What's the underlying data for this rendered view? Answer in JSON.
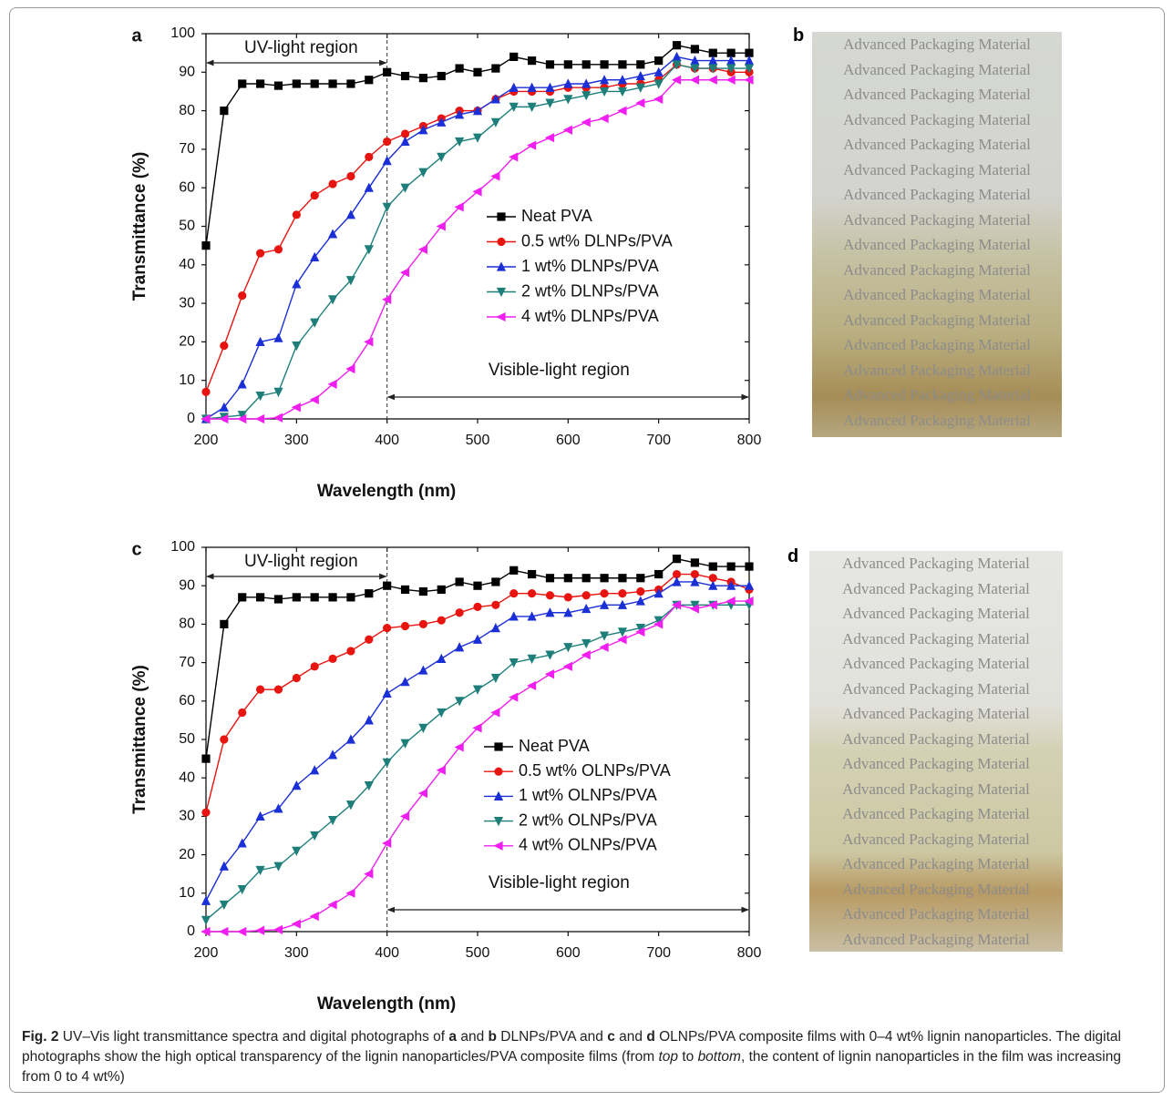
{
  "chart_data": [
    {
      "type": "line",
      "panel": "a",
      "xlabel": "Wavelength (nm)",
      "ylabel": "Transmittance (%)",
      "uv_label": "UV-light region",
      "visible_label": "Visible-light region",
      "region_divider": 400,
      "legend": "center",
      "xlim": [
        200,
        800
      ],
      "xticks": [
        200,
        300,
        400,
        500,
        600,
        700,
        800
      ],
      "ylim": [
        0,
        100
      ],
      "yticks": [
        0,
        10,
        20,
        30,
        40,
        50,
        60,
        70,
        80,
        90,
        100
      ],
      "x": [
        200,
        220,
        240,
        260,
        280,
        300,
        320,
        340,
        360,
        380,
        400,
        420,
        440,
        460,
        480,
        500,
        520,
        540,
        560,
        580,
        600,
        620,
        640,
        660,
        680,
        700,
        720,
        740,
        760,
        780,
        800
      ],
      "series": [
        {
          "name": "Neat PVA",
          "color": "#000000",
          "marker": "square",
          "values": [
            45,
            80,
            87,
            87,
            86.5,
            87,
            87,
            87,
            87,
            88,
            90,
            89,
            88.5,
            89,
            91,
            90,
            91,
            94,
            93,
            92,
            92,
            92,
            92,
            92,
            92,
            93,
            97,
            96,
            95,
            95,
            95
          ]
        },
        {
          "name": "0.5 wt% DLNPs/PVA",
          "color": "#e8140f",
          "marker": "circle",
          "values": [
            7,
            19,
            32,
            43,
            44,
            53,
            58,
            61,
            63,
            68,
            72,
            74,
            76,
            78,
            80,
            80,
            83,
            85,
            85,
            85,
            86,
            86,
            86,
            87,
            87,
            88,
            92,
            91,
            91,
            90,
            90
          ]
        },
        {
          "name": "1 wt% DLNPs/PVA",
          "color": "#1b2fd6",
          "marker": "triangle-up",
          "values": [
            0,
            3,
            9,
            20,
            21,
            35,
            42,
            48,
            53,
            60,
            67,
            72,
            75,
            77,
            79,
            80,
            83,
            86,
            86,
            86,
            87,
            87,
            88,
            88,
            89,
            90,
            94,
            93,
            93,
            93,
            93
          ]
        },
        {
          "name": "2 wt% DLNPs/PVA",
          "color": "#1e7f7a",
          "marker": "triangle-down",
          "values": [
            0,
            0.5,
            1,
            6,
            7,
            19,
            25,
            31,
            36,
            44,
            55,
            60,
            64,
            68,
            72,
            73,
            77,
            81,
            81,
            82,
            83,
            84,
            85,
            85,
            86,
            87,
            92,
            91,
            91,
            91,
            91
          ]
        },
        {
          "name": "4 wt% DLNPs/PVA",
          "color": "#f01ef0",
          "marker": "triangle-left",
          "values": [
            0,
            0,
            0,
            0,
            0.3,
            3,
            5,
            9,
            13,
            20,
            31,
            38,
            44,
            50,
            55,
            59,
            63,
            68,
            71,
            73,
            75,
            77,
            78,
            80,
            82,
            83,
            88,
            88,
            88,
            88,
            88
          ]
        }
      ]
    },
    {
      "type": "line",
      "panel": "c",
      "xlabel": "Wavelength (nm)",
      "ylabel": "Transmittance (%)",
      "uv_label": "UV-light region",
      "visible_label": "Visible-light region",
      "region_divider": 400,
      "legend": "center",
      "xlim": [
        200,
        800
      ],
      "xticks": [
        200,
        300,
        400,
        500,
        600,
        700,
        800
      ],
      "ylim": [
        0,
        100
      ],
      "yticks": [
        0,
        10,
        20,
        30,
        40,
        50,
        60,
        70,
        80,
        90,
        100
      ],
      "x": [
        200,
        220,
        240,
        260,
        280,
        300,
        320,
        340,
        360,
        380,
        400,
        420,
        440,
        460,
        480,
        500,
        520,
        540,
        560,
        580,
        600,
        620,
        640,
        660,
        680,
        700,
        720,
        740,
        760,
        780,
        800
      ],
      "series": [
        {
          "name": "Neat PVA",
          "color": "#000000",
          "marker": "square",
          "values": [
            45,
            80,
            87,
            87,
            86.5,
            87,
            87,
            87,
            87,
            88,
            90,
            89,
            88.5,
            89,
            91,
            90,
            91,
            94,
            93,
            92,
            92,
            92,
            92,
            92,
            92,
            93,
            97,
            96,
            95,
            95,
            95
          ]
        },
        {
          "name": "0.5 wt% OLNPs/PVA",
          "color": "#e8140f",
          "marker": "circle",
          "values": [
            31,
            50,
            57,
            63,
            63,
            66,
            69,
            71,
            73,
            76,
            79,
            79.5,
            80,
            81,
            83,
            84.5,
            85,
            88,
            88,
            87.5,
            87,
            87.5,
            88,
            88,
            88.5,
            89,
            93,
            93,
            92,
            91,
            89
          ]
        },
        {
          "name": "1 wt% OLNPs/PVA",
          "color": "#1b2fd6",
          "marker": "triangle-up",
          "values": [
            8,
            17,
            23,
            30,
            32,
            38,
            42,
            46,
            50,
            55,
            62,
            65,
            68,
            71,
            74,
            76,
            79,
            82,
            82,
            83,
            83,
            84,
            85,
            85,
            86,
            88,
            91,
            91,
            90,
            90,
            90
          ]
        },
        {
          "name": "2 wt% OLNPs/PVA",
          "color": "#1e7f7a",
          "marker": "triangle-down",
          "values": [
            3,
            7,
            11,
            16,
            17,
            21,
            25,
            29,
            33,
            38,
            44,
            49,
            53,
            57,
            60,
            63,
            66,
            70,
            71,
            72,
            74,
            75,
            77,
            78,
            79,
            81,
            85,
            85,
            85,
            85,
            85
          ]
        },
        {
          "name": "4 wt% OLNPs/PVA",
          "color": "#f01ef0",
          "marker": "triangle-left",
          "values": [
            0,
            0,
            0,
            0.3,
            0.5,
            2,
            4,
            7,
            10,
            15,
            23,
            30,
            36,
            42,
            48,
            53,
            57,
            61,
            64,
            67,
            69,
            72,
            74,
            76,
            78,
            80,
            85,
            84,
            85,
            86,
            86
          ]
        }
      ]
    }
  ],
  "photos": [
    {
      "label": "b",
      "rows": [
        "Advanced Packaging Material",
        "Advanced Packaging Material",
        "Advanced Packaging Material",
        "Advanced Packaging Material",
        "Advanced Packaging Material",
        "Advanced Packaging Material",
        "Advanced Packaging Material",
        "Advanced Packaging Material",
        "Advanced Packaging Material",
        "Advanced Packaging Material",
        "Advanced Packaging Material",
        "Advanced Packaging Material",
        "Advanced Packaging Material",
        "Advanced Packaging Material",
        "Advanced Packaging Material",
        "Advanced Packaging Material"
      ]
    },
    {
      "label": "d",
      "rows": [
        "Advanced Packaging Material",
        "Advanced Packaging Material",
        "Advanced Packaging Material",
        "Advanced Packaging Material",
        "Advanced Packaging Material",
        "Advanced Packaging Material",
        "Advanced Packaging Material",
        "Advanced Packaging Material",
        "Advanced Packaging Material",
        "Advanced Packaging Material",
        "Advanced Packaging Material",
        "Advanced Packaging Material",
        "Advanced Packaging Material",
        "Advanced Packaging Material",
        "Advanced Packaging Material",
        "Advanced Packaging Material"
      ]
    }
  ],
  "caption": {
    "parts": [
      "Fig. 2",
      " UV–Vis light transmittance spectra and digital photographs of ",
      "a",
      " and ",
      "b",
      " DLNPs/PVA and ",
      "c",
      " and ",
      "d",
      " OLNPs/PVA composite films with 0–4 wt% lignin nanoparticles. The digital photographs show the high optical transparency of the lignin nanoparticles/PVA composite films (from ",
      "top",
      " to ",
      "bottom",
      ", the content of lignin nanoparticles in the film was increasing from 0 to 4 wt%)"
    ]
  }
}
